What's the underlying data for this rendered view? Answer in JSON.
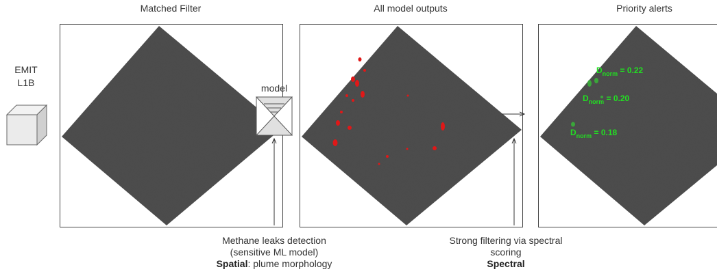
{
  "input": {
    "lines": [
      "EMIT",
      "L1B"
    ]
  },
  "panels": [
    {
      "title": "Matched Filter"
    },
    {
      "title": "All model outputs"
    },
    {
      "title": "Priority alerts",
      "alerts": [
        {
          "symbol": "D",
          "subscript": "norm",
          "text": " = 0.22"
        },
        {
          "symbol": "D",
          "subscript": "norm",
          "text": " = 0.20"
        },
        {
          "symbol": "D",
          "subscript": "norm",
          "text": " = 0.18"
        }
      ]
    }
  ],
  "model": {
    "label": "model"
  },
  "captions": [
    {
      "lines": [
        "Methane leaks detection",
        "(sensitive ML model)"
      ],
      "bold": "Spatial",
      "rest": ": plume morphology"
    },
    {
      "lines": [
        "Strong filtering via spectral",
        "scoring"
      ],
      "bold": "Spectral"
    }
  ]
}
